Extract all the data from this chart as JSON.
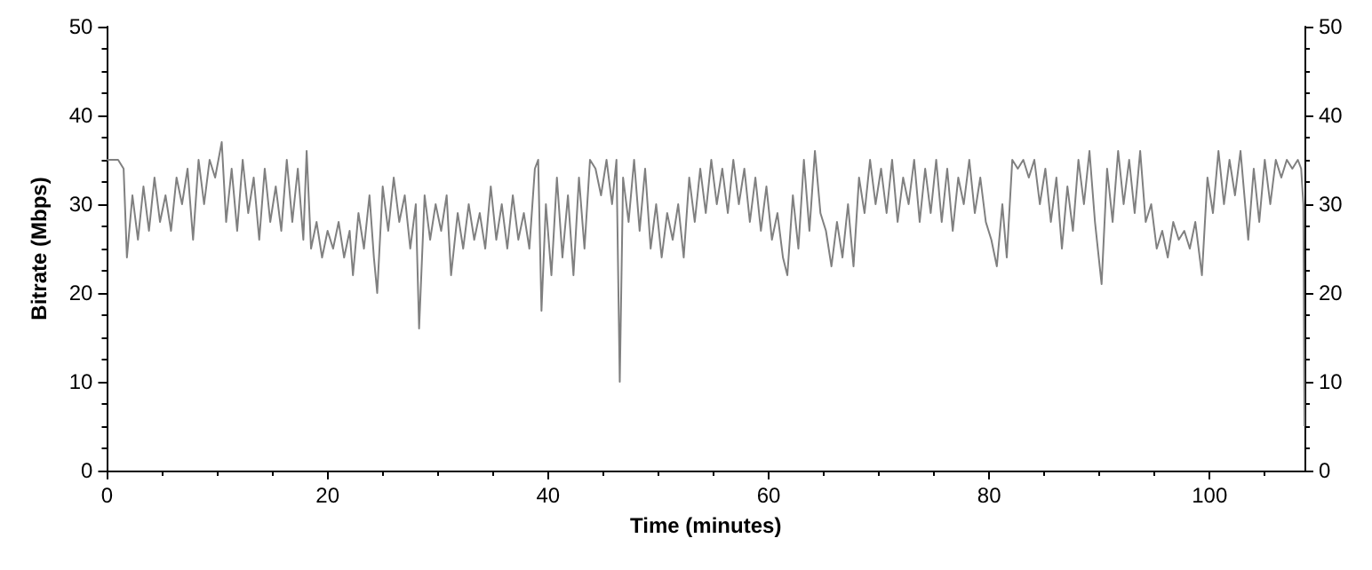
{
  "chart_data": {
    "type": "line",
    "xlabel": "Time (minutes)",
    "ylabel": "Bitrate (Mbps)",
    "xlim": [
      0,
      108.6
    ],
    "xticks": [
      0,
      20,
      40,
      60,
      80,
      100
    ],
    "ylim": [
      0,
      50
    ],
    "yticks": [
      0,
      10,
      20,
      30,
      40,
      50
    ],
    "y2lim": [
      0,
      50
    ],
    "y2ticks": [
      0,
      10,
      20,
      30,
      40,
      50
    ],
    "grid": false,
    "marker": "none",
    "line_style": "solid",
    "series": [
      {
        "color": "#808080",
        "x": [
          0,
          1,
          1.5,
          1.8,
          2.3,
          2.8,
          3.3,
          3.8,
          4.3,
          4.8,
          5.3,
          5.8,
          6.3,
          6.8,
          7.3,
          7.8,
          8.3,
          8.8,
          9.3,
          9.8,
          10.4,
          10.8,
          11.3,
          11.8,
          12.3,
          12.8,
          13.3,
          13.8,
          14.3,
          14.8,
          15.3,
          15.8,
          16.3,
          16.8,
          17.3,
          17.8,
          18.1,
          18.5,
          19,
          19.5,
          20,
          20.5,
          21,
          21.5,
          22,
          22.3,
          22.8,
          23.3,
          23.8,
          24.2,
          24.5,
          25,
          25.5,
          26,
          26.5,
          27,
          27.5,
          28,
          28.3,
          28.8,
          29.3,
          29.8,
          30.3,
          30.8,
          31.2,
          31.8,
          32.3,
          32.8,
          33.3,
          33.8,
          34.3,
          34.8,
          35.3,
          35.8,
          36.3,
          36.8,
          37.3,
          37.8,
          38.3,
          38.8,
          39.1,
          39.4,
          39.8,
          40.3,
          40.8,
          41.3,
          41.8,
          42.3,
          42.8,
          43.3,
          43.8,
          44.3,
          44.8,
          45.3,
          45.8,
          46.2,
          46.5,
          46.8,
          47.3,
          47.8,
          48.3,
          48.8,
          49.3,
          49.8,
          50.3,
          50.8,
          51.3,
          51.8,
          52.3,
          52.8,
          53.3,
          53.8,
          54.3,
          54.8,
          55.3,
          55.8,
          56.3,
          56.8,
          57.3,
          57.8,
          58.3,
          58.8,
          59.3,
          59.8,
          60.3,
          60.8,
          61.3,
          61.7,
          62.2,
          62.7,
          63.2,
          63.7,
          64.2,
          64.7,
          65.2,
          65.7,
          66.2,
          66.7,
          67.2,
          67.7,
          68.2,
          68.7,
          69.2,
          69.7,
          70.2,
          70.7,
          71.2,
          71.7,
          72.2,
          72.7,
          73.2,
          73.7,
          74.2,
          74.7,
          75.2,
          75.7,
          76.2,
          76.7,
          77.2,
          77.7,
          78.2,
          78.7,
          79.2,
          79.7,
          80.2,
          80.7,
          81.2,
          81.6,
          82.1,
          82.6,
          83.1,
          83.6,
          84.1,
          84.6,
          85.1,
          85.6,
          86.1,
          86.6,
          87.1,
          87.6,
          88.1,
          88.6,
          89.1,
          89.6,
          90.2,
          90.7,
          91.2,
          91.7,
          92.2,
          92.7,
          93.2,
          93.7,
          94.2,
          94.7,
          95.2,
          95.7,
          96.2,
          96.7,
          97.2,
          97.7,
          98.2,
          98.7,
          99.3,
          99.8,
          100.3,
          100.8,
          101.3,
          101.8,
          102.3,
          102.8,
          103.5,
          104,
          104.5,
          105,
          105.5,
          106,
          106.5,
          107,
          107.5,
          108,
          108.3,
          108.5,
          108.6
        ],
        "values": [
          35,
          35,
          34,
          24,
          31,
          26,
          32,
          27,
          33,
          28,
          31,
          27,
          33,
          30,
          34,
          26,
          35,
          30,
          35,
          33,
          37,
          28,
          34,
          27,
          35,
          29,
          33,
          26,
          34,
          28,
          32,
          27,
          35,
          28,
          34,
          26,
          36,
          25,
          28,
          24,
          27,
          25,
          28,
          24,
          27,
          22,
          29,
          25,
          31,
          24,
          20,
          32,
          27,
          33,
          28,
          31,
          25,
          30,
          16,
          31,
          26,
          30,
          27,
          31,
          22,
          29,
          25,
          30,
          26,
          29,
          25,
          32,
          26,
          30,
          25,
          31,
          26,
          29,
          25,
          34,
          35,
          18,
          30,
          22,
          33,
          24,
          31,
          22,
          33,
          25,
          35,
          34,
          31,
          35,
          30,
          35,
          10,
          33,
          28,
          35,
          27,
          34,
          25,
          30,
          24,
          29,
          26,
          30,
          24,
          33,
          28,
          34,
          29,
          35,
          30,
          34,
          29,
          35,
          30,
          34,
          28,
          33,
          27,
          32,
          26,
          29,
          24,
          22,
          31,
          25,
          35,
          27,
          36,
          29,
          27,
          23,
          28,
          24,
          30,
          23,
          33,
          29,
          35,
          30,
          34,
          29,
          35,
          28,
          33,
          30,
          35,
          28,
          34,
          29,
          35,
          28,
          34,
          27,
          33,
          30,
          35,
          29,
          33,
          28,
          26,
          23,
          30,
          24,
          35,
          34,
          35,
          33,
          35,
          30,
          34,
          28,
          33,
          25,
          32,
          27,
          35,
          30,
          36,
          28,
          21,
          34,
          28,
          36,
          30,
          35,
          29,
          36,
          28,
          30,
          25,
          27,
          24,
          28,
          26,
          27,
          25,
          28,
          22,
          33,
          29,
          36,
          30,
          35,
          31,
          36,
          26,
          34,
          28,
          35,
          30,
          35,
          33,
          35,
          34,
          35,
          34,
          30,
          5
        ]
      }
    ]
  }
}
